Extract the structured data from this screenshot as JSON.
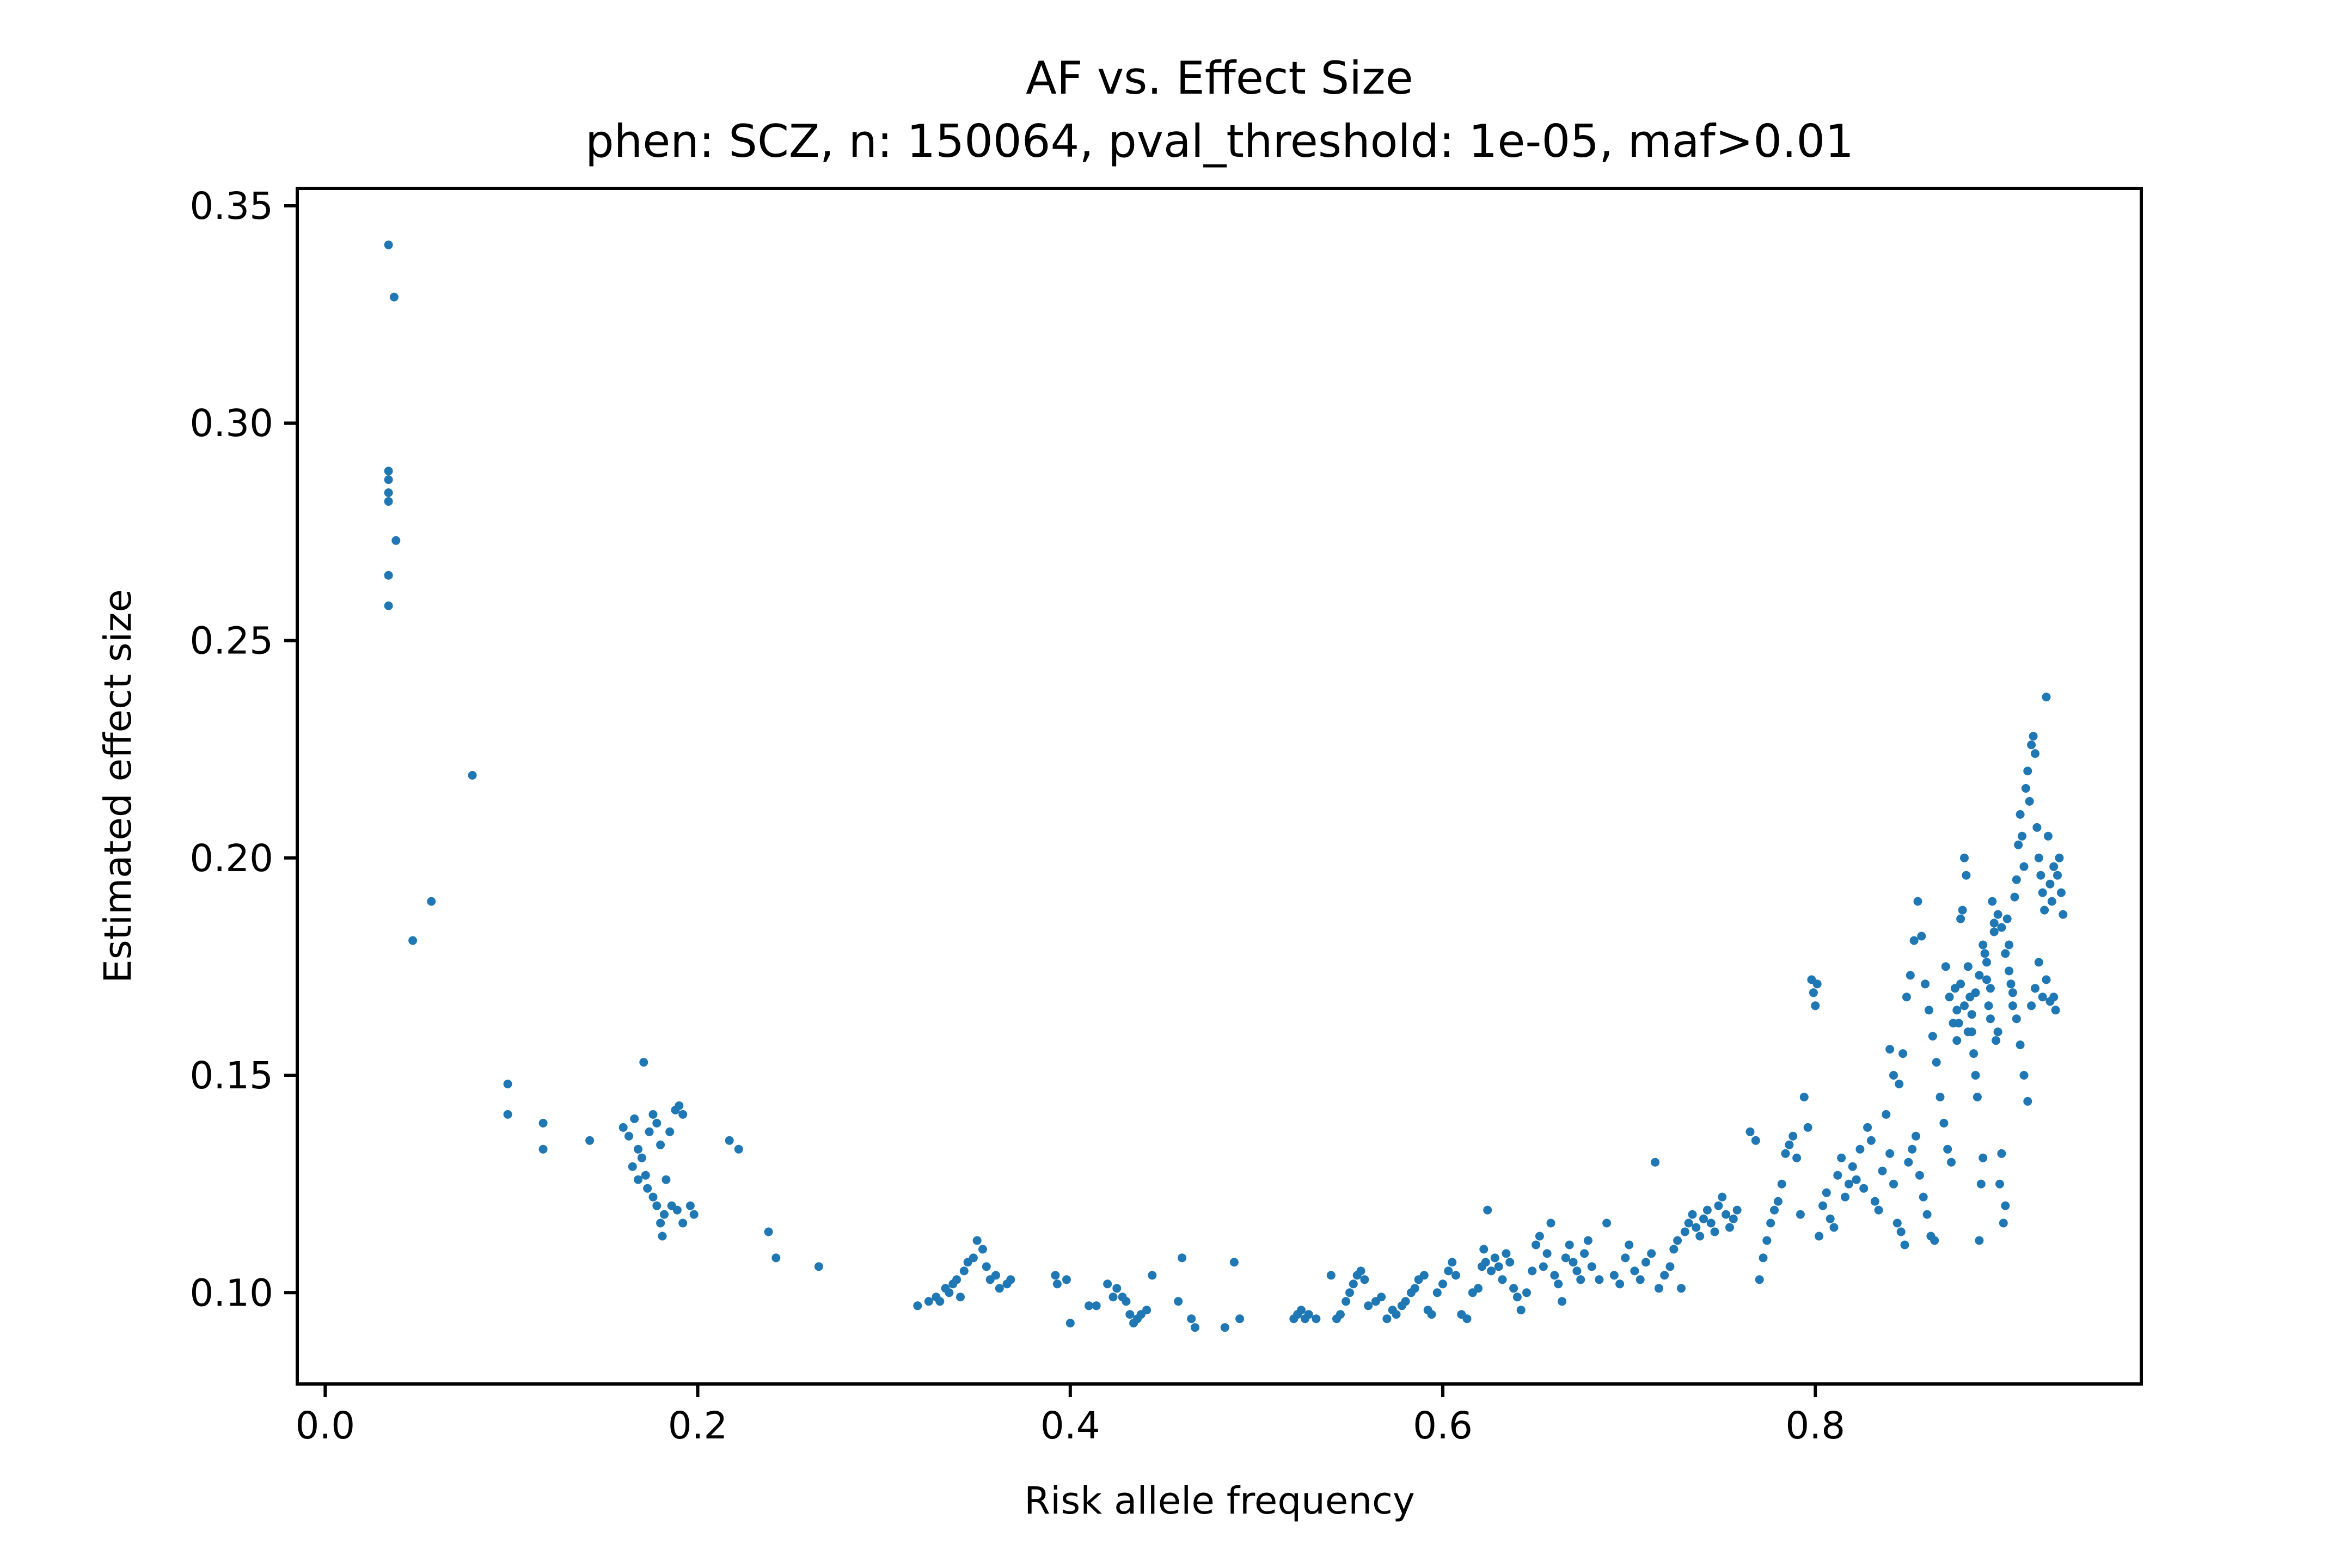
{
  "chart_data": {
    "type": "scatter",
    "title": "AF vs. Effect Size",
    "subtitle": "phen: SCZ, n: 150064, pval_threshold: 1e-05, maf>0.01",
    "xlabel": "Risk allele frequency",
    "ylabel": "Estimated effect size",
    "xlim": [
      -0.015,
      0.975
    ],
    "ylim": [
      0.079,
      0.354
    ],
    "xticks": [
      0.0,
      0.2,
      0.4,
      0.6,
      0.8
    ],
    "xtick_labels": [
      "0.0",
      "0.2",
      "0.4",
      "0.6",
      "0.8"
    ],
    "yticks": [
      0.1,
      0.15,
      0.2,
      0.25,
      0.3,
      0.35
    ],
    "ytick_labels": [
      "0.10",
      "0.15",
      "0.20",
      "0.25",
      "0.30",
      "0.35"
    ],
    "grid": false,
    "legend": "none",
    "marker_color": "#1f77b4",
    "points": [
      [
        0.034,
        0.341
      ],
      [
        0.037,
        0.329
      ],
      [
        0.034,
        0.289
      ],
      [
        0.034,
        0.287
      ],
      [
        0.034,
        0.284
      ],
      [
        0.034,
        0.282
      ],
      [
        0.038,
        0.273
      ],
      [
        0.034,
        0.265
      ],
      [
        0.034,
        0.258
      ],
      [
        0.079,
        0.219
      ],
      [
        0.057,
        0.19
      ],
      [
        0.047,
        0.181
      ],
      [
        0.098,
        0.148
      ],
      [
        0.098,
        0.141
      ],
      [
        0.117,
        0.139
      ],
      [
        0.117,
        0.133
      ],
      [
        0.142,
        0.135
      ],
      [
        0.171,
        0.153
      ],
      [
        0.16,
        0.138
      ],
      [
        0.163,
        0.136
      ],
      [
        0.166,
        0.14
      ],
      [
        0.168,
        0.133
      ],
      [
        0.17,
        0.131
      ],
      [
        0.172,
        0.127
      ],
      [
        0.174,
        0.137
      ],
      [
        0.176,
        0.141
      ],
      [
        0.178,
        0.139
      ],
      [
        0.18,
        0.134
      ],
      [
        0.165,
        0.129
      ],
      [
        0.168,
        0.126
      ],
      [
        0.173,
        0.124
      ],
      [
        0.176,
        0.122
      ],
      [
        0.178,
        0.12
      ],
      [
        0.18,
        0.116
      ],
      [
        0.181,
        0.113
      ],
      [
        0.182,
        0.118
      ],
      [
        0.185,
        0.137
      ],
      [
        0.188,
        0.142
      ],
      [
        0.19,
        0.143
      ],
      [
        0.192,
        0.141
      ],
      [
        0.186,
        0.12
      ],
      [
        0.189,
        0.119
      ],
      [
        0.192,
        0.116
      ],
      [
        0.196,
        0.12
      ],
      [
        0.198,
        0.118
      ],
      [
        0.183,
        0.126
      ],
      [
        0.217,
        0.135
      ],
      [
        0.222,
        0.133
      ],
      [
        0.238,
        0.114
      ],
      [
        0.242,
        0.108
      ],
      [
        0.265,
        0.106
      ],
      [
        0.318,
        0.097
      ],
      [
        0.324,
        0.098
      ],
      [
        0.328,
        0.099
      ],
      [
        0.33,
        0.098
      ],
      [
        0.333,
        0.101
      ],
      [
        0.335,
        0.1
      ],
      [
        0.337,
        0.102
      ],
      [
        0.339,
        0.103
      ],
      [
        0.341,
        0.099
      ],
      [
        0.343,
        0.105
      ],
      [
        0.345,
        0.107
      ],
      [
        0.348,
        0.108
      ],
      [
        0.35,
        0.112
      ],
      [
        0.353,
        0.11
      ],
      [
        0.355,
        0.106
      ],
      [
        0.357,
        0.103
      ],
      [
        0.36,
        0.104
      ],
      [
        0.362,
        0.101
      ],
      [
        0.366,
        0.102
      ],
      [
        0.368,
        0.103
      ],
      [
        0.392,
        0.104
      ],
      [
        0.393,
        0.102
      ],
      [
        0.398,
        0.103
      ],
      [
        0.4,
        0.093
      ],
      [
        0.41,
        0.097
      ],
      [
        0.414,
        0.097
      ],
      [
        0.42,
        0.102
      ],
      [
        0.423,
        0.099
      ],
      [
        0.425,
        0.101
      ],
      [
        0.428,
        0.099
      ],
      [
        0.43,
        0.098
      ],
      [
        0.432,
        0.095
      ],
      [
        0.434,
        0.093
      ],
      [
        0.436,
        0.094
      ],
      [
        0.438,
        0.095
      ],
      [
        0.441,
        0.096
      ],
      [
        0.444,
        0.104
      ],
      [
        0.458,
        0.098
      ],
      [
        0.46,
        0.108
      ],
      [
        0.465,
        0.094
      ],
      [
        0.467,
        0.092
      ],
      [
        0.483,
        0.092
      ],
      [
        0.488,
        0.107
      ],
      [
        0.491,
        0.094
      ],
      [
        0.52,
        0.094
      ],
      [
        0.522,
        0.095
      ],
      [
        0.524,
        0.096
      ],
      [
        0.526,
        0.094
      ],
      [
        0.528,
        0.095
      ],
      [
        0.532,
        0.094
      ],
      [
        0.54,
        0.104
      ],
      [
        0.543,
        0.094
      ],
      [
        0.545,
        0.095
      ],
      [
        0.548,
        0.098
      ],
      [
        0.55,
        0.1
      ],
      [
        0.552,
        0.102
      ],
      [
        0.554,
        0.104
      ],
      [
        0.556,
        0.105
      ],
      [
        0.558,
        0.103
      ],
      [
        0.56,
        0.097
      ],
      [
        0.564,
        0.098
      ],
      [
        0.567,
        0.099
      ],
      [
        0.57,
        0.094
      ],
      [
        0.573,
        0.096
      ],
      [
        0.575,
        0.095
      ],
      [
        0.578,
        0.097
      ],
      [
        0.58,
        0.098
      ],
      [
        0.583,
        0.1
      ],
      [
        0.585,
        0.101
      ],
      [
        0.587,
        0.103
      ],
      [
        0.59,
        0.104
      ],
      [
        0.592,
        0.096
      ],
      [
        0.594,
        0.095
      ],
      [
        0.597,
        0.1
      ],
      [
        0.6,
        0.102
      ],
      [
        0.603,
        0.105
      ],
      [
        0.605,
        0.107
      ],
      [
        0.607,
        0.104
      ],
      [
        0.61,
        0.095
      ],
      [
        0.613,
        0.094
      ],
      [
        0.616,
        0.1
      ],
      [
        0.619,
        0.101
      ],
      [
        0.621,
        0.106
      ],
      [
        0.622,
        0.11
      ],
      [
        0.623,
        0.107
      ],
      [
        0.624,
        0.119
      ],
      [
        0.626,
        0.105
      ],
      [
        0.628,
        0.108
      ],
      [
        0.63,
        0.106
      ],
      [
        0.632,
        0.103
      ],
      [
        0.634,
        0.109
      ],
      [
        0.636,
        0.107
      ],
      [
        0.638,
        0.101
      ],
      [
        0.64,
        0.099
      ],
      [
        0.642,
        0.096
      ],
      [
        0.645,
        0.1
      ],
      [
        0.648,
        0.105
      ],
      [
        0.65,
        0.111
      ],
      [
        0.652,
        0.113
      ],
      [
        0.654,
        0.106
      ],
      [
        0.656,
        0.109
      ],
      [
        0.658,
        0.116
      ],
      [
        0.66,
        0.104
      ],
      [
        0.662,
        0.102
      ],
      [
        0.664,
        0.098
      ],
      [
        0.666,
        0.108
      ],
      [
        0.668,
        0.111
      ],
      [
        0.67,
        0.107
      ],
      [
        0.672,
        0.105
      ],
      [
        0.674,
        0.103
      ],
      [
        0.676,
        0.109
      ],
      [
        0.678,
        0.112
      ],
      [
        0.68,
        0.106
      ],
      [
        0.684,
        0.103
      ],
      [
        0.688,
        0.116
      ],
      [
        0.692,
        0.104
      ],
      [
        0.695,
        0.102
      ],
      [
        0.698,
        0.108
      ],
      [
        0.7,
        0.111
      ],
      [
        0.703,
        0.105
      ],
      [
        0.706,
        0.103
      ],
      [
        0.709,
        0.107
      ],
      [
        0.712,
        0.109
      ],
      [
        0.714,
        0.13
      ],
      [
        0.716,
        0.101
      ],
      [
        0.719,
        0.104
      ],
      [
        0.722,
        0.106
      ],
      [
        0.724,
        0.11
      ],
      [
        0.726,
        0.112
      ],
      [
        0.728,
        0.101
      ],
      [
        0.73,
        0.114
      ],
      [
        0.732,
        0.116
      ],
      [
        0.734,
        0.118
      ],
      [
        0.736,
        0.115
      ],
      [
        0.738,
        0.113
      ],
      [
        0.74,
        0.117
      ],
      [
        0.742,
        0.119
      ],
      [
        0.744,
        0.116
      ],
      [
        0.746,
        0.114
      ],
      [
        0.748,
        0.12
      ],
      [
        0.75,
        0.122
      ],
      [
        0.752,
        0.118
      ],
      [
        0.754,
        0.115
      ],
      [
        0.756,
        0.117
      ],
      [
        0.758,
        0.119
      ],
      [
        0.765,
        0.137
      ],
      [
        0.768,
        0.135
      ],
      [
        0.77,
        0.103
      ],
      [
        0.772,
        0.108
      ],
      [
        0.774,
        0.112
      ],
      [
        0.776,
        0.116
      ],
      [
        0.778,
        0.119
      ],
      [
        0.78,
        0.121
      ],
      [
        0.782,
        0.125
      ],
      [
        0.784,
        0.132
      ],
      [
        0.786,
        0.134
      ],
      [
        0.788,
        0.136
      ],
      [
        0.79,
        0.131
      ],
      [
        0.792,
        0.118
      ],
      [
        0.794,
        0.145
      ],
      [
        0.796,
        0.138
      ],
      [
        0.798,
        0.172
      ],
      [
        0.799,
        0.169
      ],
      [
        0.8,
        0.166
      ],
      [
        0.801,
        0.171
      ],
      [
        0.802,
        0.113
      ],
      [
        0.804,
        0.12
      ],
      [
        0.806,
        0.123
      ],
      [
        0.808,
        0.117
      ],
      [
        0.81,
        0.115
      ],
      [
        0.812,
        0.127
      ],
      [
        0.814,
        0.131
      ],
      [
        0.816,
        0.122
      ],
      [
        0.818,
        0.125
      ],
      [
        0.82,
        0.129
      ],
      [
        0.822,
        0.126
      ],
      [
        0.824,
        0.133
      ],
      [
        0.826,
        0.124
      ],
      [
        0.828,
        0.138
      ],
      [
        0.83,
        0.135
      ],
      [
        0.832,
        0.121
      ],
      [
        0.834,
        0.119
      ],
      [
        0.836,
        0.128
      ],
      [
        0.838,
        0.141
      ],
      [
        0.84,
        0.132
      ],
      [
        0.842,
        0.125
      ],
      [
        0.844,
        0.116
      ],
      [
        0.846,
        0.114
      ],
      [
        0.848,
        0.111
      ],
      [
        0.85,
        0.13
      ],
      [
        0.852,
        0.133
      ],
      [
        0.854,
        0.136
      ],
      [
        0.856,
        0.127
      ],
      [
        0.858,
        0.122
      ],
      [
        0.86,
        0.118
      ],
      [
        0.862,
        0.113
      ],
      [
        0.864,
        0.112
      ],
      [
        0.84,
        0.156
      ],
      [
        0.842,
        0.15
      ],
      [
        0.845,
        0.148
      ],
      [
        0.847,
        0.155
      ],
      [
        0.849,
        0.168
      ],
      [
        0.851,
        0.173
      ],
      [
        0.853,
        0.181
      ],
      [
        0.855,
        0.19
      ],
      [
        0.857,
        0.182
      ],
      [
        0.859,
        0.171
      ],
      [
        0.861,
        0.165
      ],
      [
        0.863,
        0.159
      ],
      [
        0.865,
        0.153
      ],
      [
        0.867,
        0.145
      ],
      [
        0.869,
        0.139
      ],
      [
        0.871,
        0.133
      ],
      [
        0.873,
        0.13
      ],
      [
        0.875,
        0.17
      ],
      [
        0.876,
        0.165
      ],
      [
        0.877,
        0.162
      ],
      [
        0.878,
        0.186
      ],
      [
        0.879,
        0.188
      ],
      [
        0.88,
        0.2
      ],
      [
        0.881,
        0.196
      ],
      [
        0.882,
        0.175
      ],
      [
        0.883,
        0.168
      ],
      [
        0.884,
        0.16
      ],
      [
        0.885,
        0.155
      ],
      [
        0.886,
        0.15
      ],
      [
        0.887,
        0.145
      ],
      [
        0.888,
        0.112
      ],
      [
        0.889,
        0.125
      ],
      [
        0.89,
        0.131
      ],
      [
        0.891,
        0.178
      ],
      [
        0.892,
        0.172
      ],
      [
        0.893,
        0.166
      ],
      [
        0.894,
        0.163
      ],
      [
        0.895,
        0.19
      ],
      [
        0.896,
        0.185
      ],
      [
        0.897,
        0.158
      ],
      [
        0.898,
        0.16
      ],
      [
        0.899,
        0.125
      ],
      [
        0.9,
        0.132
      ],
      [
        0.901,
        0.116
      ],
      [
        0.902,
        0.12
      ],
      [
        0.903,
        0.186
      ],
      [
        0.904,
        0.18
      ],
      [
        0.905,
        0.171
      ],
      [
        0.906,
        0.166
      ],
      [
        0.907,
        0.191
      ],
      [
        0.908,
        0.195
      ],
      [
        0.909,
        0.203
      ],
      [
        0.91,
        0.21
      ],
      [
        0.911,
        0.205
      ],
      [
        0.912,
        0.198
      ],
      [
        0.913,
        0.216
      ],
      [
        0.914,
        0.22
      ],
      [
        0.915,
        0.213
      ],
      [
        0.916,
        0.226
      ],
      [
        0.917,
        0.228
      ],
      [
        0.918,
        0.224
      ],
      [
        0.919,
        0.207
      ],
      [
        0.92,
        0.2
      ],
      [
        0.921,
        0.196
      ],
      [
        0.922,
        0.192
      ],
      [
        0.923,
        0.188
      ],
      [
        0.924,
        0.237
      ],
      [
        0.925,
        0.205
      ],
      [
        0.926,
        0.194
      ],
      [
        0.927,
        0.19
      ],
      [
        0.928,
        0.168
      ],
      [
        0.929,
        0.165
      ],
      [
        0.93,
        0.196
      ],
      [
        0.931,
        0.2
      ],
      [
        0.932,
        0.192
      ],
      [
        0.933,
        0.187
      ],
      [
        0.87,
        0.175
      ],
      [
        0.872,
        0.168
      ],
      [
        0.874,
        0.162
      ],
      [
        0.876,
        0.158
      ],
      [
        0.878,
        0.171
      ],
      [
        0.88,
        0.166
      ],
      [
        0.882,
        0.16
      ],
      [
        0.884,
        0.164
      ],
      [
        0.886,
        0.169
      ],
      [
        0.888,
        0.173
      ],
      [
        0.89,
        0.18
      ],
      [
        0.892,
        0.176
      ],
      [
        0.894,
        0.17
      ],
      [
        0.896,
        0.183
      ],
      [
        0.898,
        0.187
      ],
      [
        0.9,
        0.184
      ],
      [
        0.902,
        0.178
      ],
      [
        0.904,
        0.174
      ],
      [
        0.906,
        0.169
      ],
      [
        0.908,
        0.163
      ],
      [
        0.91,
        0.157
      ],
      [
        0.912,
        0.15
      ],
      [
        0.914,
        0.144
      ],
      [
        0.916,
        0.166
      ],
      [
        0.918,
        0.17
      ],
      [
        0.92,
        0.176
      ],
      [
        0.922,
        0.168
      ],
      [
        0.924,
        0.172
      ],
      [
        0.926,
        0.167
      ],
      [
        0.928,
        0.198
      ]
    ]
  }
}
